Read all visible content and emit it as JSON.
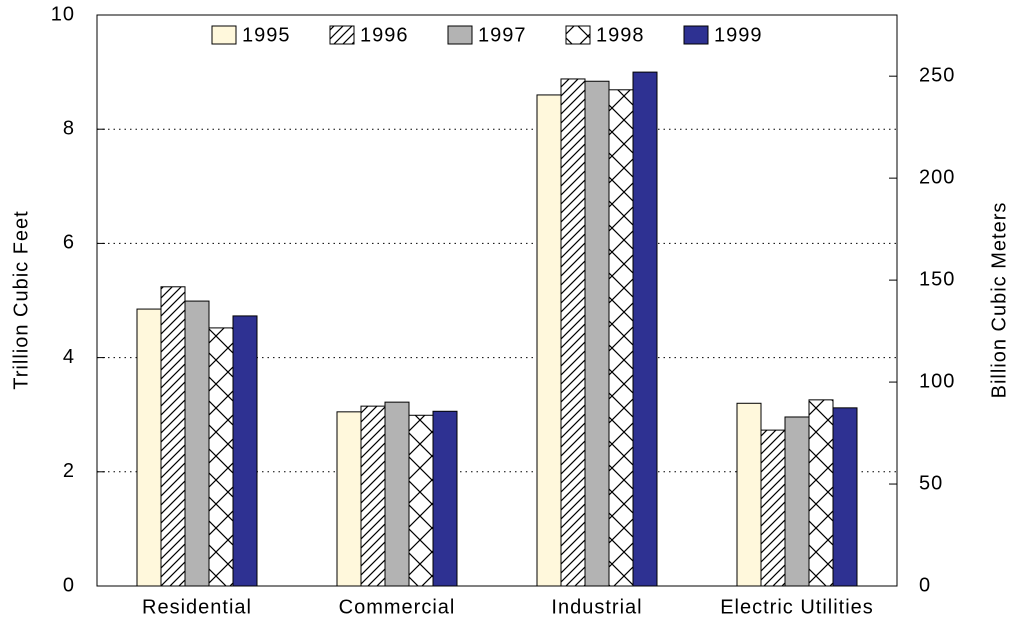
{
  "chart_data": {
    "type": "bar",
    "categories": [
      "Residential",
      "Commercial",
      "Industrial",
      "Electric Utilities"
    ],
    "series": [
      {
        "name": "1995",
        "color": "#fff8dc",
        "values": [
          4.85,
          3.05,
          8.6,
          3.2
        ]
      },
      {
        "name": "1996",
        "color": "#ffffff",
        "pattern": "diagonal",
        "values": [
          5.24,
          3.15,
          8.88,
          2.73
        ]
      },
      {
        "name": "1997",
        "color": "#b3b3b3",
        "values": [
          4.99,
          3.22,
          8.84,
          2.96
        ]
      },
      {
        "name": "1998",
        "color": "#ffffff",
        "pattern": "cross",
        "values": [
          4.52,
          2.99,
          8.69,
          3.26
        ]
      },
      {
        "name": "1999",
        "color": "#2e3192",
        "values": [
          4.73,
          3.06,
          9.0,
          3.12
        ]
      }
    ],
    "ylabel": "Trillion Cubic Feet",
    "y2label": "Billion Cubic Meters",
    "ylim": [
      0,
      10
    ],
    "yticks": [
      0,
      2,
      4,
      6,
      8,
      10
    ],
    "y2lim": [
      0,
      280
    ],
    "y2ticks": [
      0,
      50,
      100,
      150,
      200,
      250
    ],
    "grid": true,
    "legend": "top"
  }
}
